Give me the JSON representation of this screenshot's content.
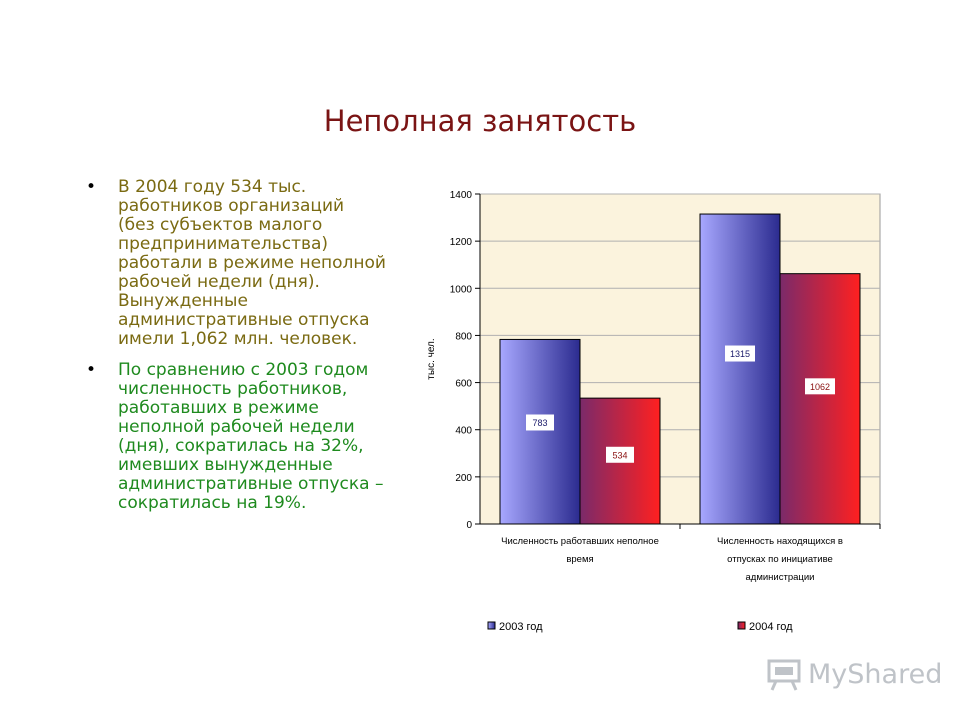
{
  "title": "Неполная занятость",
  "bullets": [
    {
      "text": "В 2004 году 534 тыс. работников организаций (без субъектов малого предпринимательства) работали в режиме неполной рабочей недели (дня). Вынужденные административные отпуска имели 1,062 млн. человек.",
      "color": "#7a6a12"
    },
    {
      "text": "По сравнению с 2003 годом численность работников, работавших в режиме неполной рабочей недели (дня), сократилась на 32%, имевших вынужденные административные отпуска – сократилась на 19%.",
      "color": "#1e8a1e"
    }
  ],
  "chart_data": {
    "type": "bar",
    "categories": [
      [
        "Численность работавших неполное",
        "время"
      ],
      [
        "Численность находящихся в",
        "отпусках по инициативе",
        "администрации"
      ]
    ],
    "series": [
      {
        "name": "2003 год",
        "values": [
          783,
          1315
        ],
        "color_dark": "#2b2b8f",
        "color_light": "#a8a8ff"
      },
      {
        "name": "2004 год",
        "values": [
          534,
          1062
        ],
        "color_dark": "#7a2a6a",
        "color_light": "#ff2020"
      }
    ],
    "ylabel": "тыс. чел.",
    "ylim": [
      0,
      1400
    ],
    "yticks": [
      0,
      200,
      400,
      600,
      800,
      1000,
      1200,
      1400
    ],
    "grid": true,
    "legend_position": "bottom",
    "plot_background": "#fbf3dd"
  },
  "watermark": {
    "text": "MyShared",
    "icon": "blackboard-icon"
  }
}
